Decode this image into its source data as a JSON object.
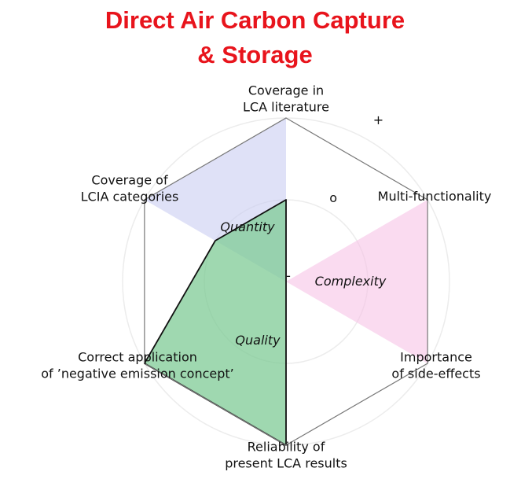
{
  "chart_data": {
    "type": "radar",
    "title": "Direct Air Carbon Capture\n& Storage",
    "categories": [
      "Coverage in\nLCA literature",
      "Multi-functionality",
      "Importance\nof side-effects",
      "Reliability of\npresent LCA results",
      "Correct application\nof ’negative emission concept’",
      "Coverage of\nLCIA categories"
    ],
    "rlim": [
      -1,
      1
    ],
    "rticks": [
      {
        "value": -1,
        "label": "-"
      },
      {
        "value": 0,
        "label": "o"
      },
      {
        "value": 1,
        "label": "+"
      }
    ],
    "grid": true,
    "series": [
      {
        "name": "Quantity",
        "color": "#c9cdf1",
        "values": [
          1,
          -1,
          -1,
          -1,
          -1,
          1
        ]
      },
      {
        "name": "Complexity",
        "color": "#f7c3e6",
        "values": [
          -1,
          1,
          1,
          -1,
          -1,
          -1
        ]
      },
      {
        "name": "Quality",
        "color": "#7fcb95",
        "values": [
          0,
          -1,
          -1,
          1,
          1,
          0
        ]
      }
    ]
  }
}
